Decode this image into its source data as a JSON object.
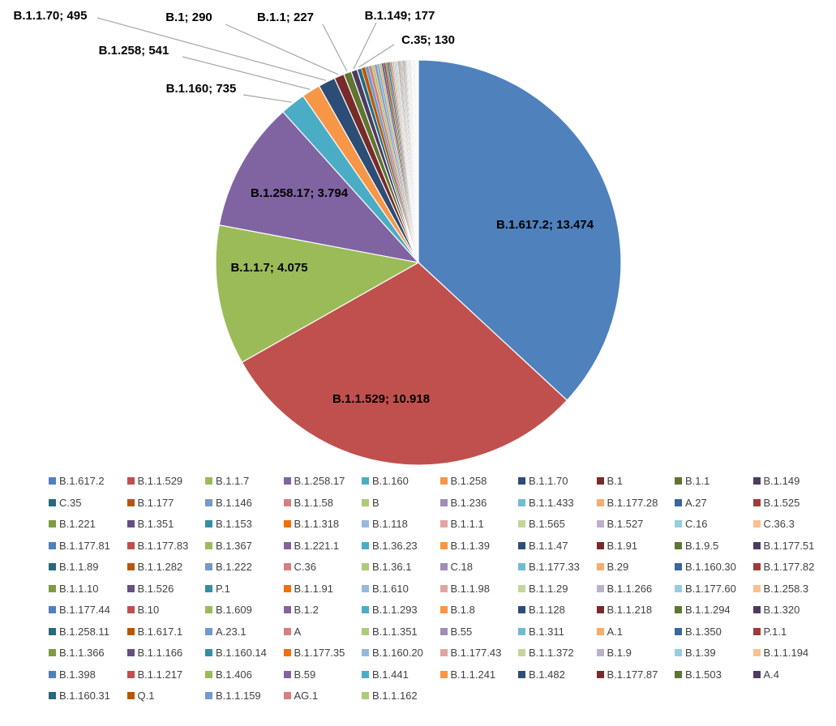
{
  "chart_data": {
    "type": "pie",
    "title": "",
    "legend_position": "bottom",
    "palette": [
      "#4F81BD",
      "#C0504D",
      "#9BBB59",
      "#8064A2",
      "#4BACC6",
      "#F79646",
      "#2C4D75",
      "#772C2A",
      "#5F7530",
      "#4D3B62",
      "#276A7C",
      "#B65708",
      "#729ACA",
      "#D4807E",
      "#AFC97A",
      "#A18CB7",
      "#6FBDD1",
      "#F9AB6B",
      "#3A679C",
      "#9F3B38",
      "#7E9C40",
      "#664F83",
      "#358EA6",
      "#F36F0A",
      "#97B8DC",
      "#E0A4A3",
      "#C3D69B",
      "#BDAFCD",
      "#95CEDD",
      "#FAC090"
    ],
    "label_precision": 0,
    "slices": [
      {
        "label": "B.1.617.2",
        "value": 13474,
        "display": "13.474"
      },
      {
        "label": "B.1.1.529",
        "value": 10918,
        "display": "10.918"
      },
      {
        "label": "B.1.1.7",
        "value": 4075,
        "display": "4.075"
      },
      {
        "label": "B.1.258.17",
        "value": 3794,
        "display": "3.794"
      },
      {
        "label": "B.1.160",
        "value": 735,
        "display": "735"
      },
      {
        "label": "B.1.258",
        "value": 541,
        "display": "541"
      },
      {
        "label": "B.1.1.70",
        "value": 495,
        "display": "495"
      },
      {
        "label": "B.1",
        "value": 290,
        "display": "290"
      },
      {
        "label": "B.1.1",
        "value": 227,
        "display": "227"
      },
      {
        "label": "B.1.149",
        "value": 177,
        "display": "177"
      },
      {
        "label": "C.35",
        "value": 130,
        "display": "130"
      },
      {
        "label": "B.1.177",
        "value": 110
      },
      {
        "label": "B.1.146",
        "value": 100
      },
      {
        "label": "B.1.1.58",
        "value": 90
      },
      {
        "label": "B",
        "value": 82
      },
      {
        "label": "B.1.236",
        "value": 75
      },
      {
        "label": "B.1.1.433",
        "value": 70
      },
      {
        "label": "B.1.177.28",
        "value": 64
      },
      {
        "label": "A.27",
        "value": 59
      },
      {
        "label": "B.1.525",
        "value": 55
      },
      {
        "label": "B.1.221",
        "value": 50
      },
      {
        "label": "B.1.351",
        "value": 46
      },
      {
        "label": "B.1.153",
        "value": 43
      },
      {
        "label": "B.1.1.318",
        "value": 40
      },
      {
        "label": "B.1.118",
        "value": 37
      },
      {
        "label": "B.1.1.1",
        "value": 34
      },
      {
        "label": "B.1.565",
        "value": 32
      },
      {
        "label": "B.1.527",
        "value": 30
      },
      {
        "label": "C.16",
        "value": 28
      },
      {
        "label": "C.36.3",
        "value": 26
      },
      {
        "label": "B.1.177.81",
        "value": 25
      },
      {
        "label": "B.1.177.83",
        "value": 24
      },
      {
        "label": "B.1.367",
        "value": 23
      },
      {
        "label": "B.1.221.1",
        "value": 22
      },
      {
        "label": "B.1.36.23",
        "value": 21
      },
      {
        "label": "B.1.1.39",
        "value": 20
      },
      {
        "label": "B.1.1.47",
        "value": 19
      },
      {
        "label": "B.1.91",
        "value": 18
      },
      {
        "label": "B.1.9.5",
        "value": 17
      },
      {
        "label": "B.1.177.51",
        "value": 16
      },
      {
        "label": "B.1.1.89",
        "value": 15
      },
      {
        "label": "B.1.1.282",
        "value": 15
      },
      {
        "label": "B.1.222",
        "value": 14
      },
      {
        "label": "C.36",
        "value": 14
      },
      {
        "label": "B.1.36.1",
        "value": 13
      },
      {
        "label": "C.18",
        "value": 13
      },
      {
        "label": "B.1.177.33",
        "value": 12
      },
      {
        "label": "B.29",
        "value": 12
      },
      {
        "label": "B.1.160.30",
        "value": 11
      },
      {
        "label": "B.1.177.82",
        "value": 11
      },
      {
        "label": "B.1.1.10",
        "value": 10
      },
      {
        "label": "B.1.526",
        "value": 10
      },
      {
        "label": "P.1",
        "value": 10
      },
      {
        "label": "B.1.1.91",
        "value": 9
      },
      {
        "label": "B.1.610",
        "value": 9
      },
      {
        "label": "B.1.1.98",
        "value": 9
      },
      {
        "label": "B.1.1.29",
        "value": 8
      },
      {
        "label": "B.1.1.266",
        "value": 8
      },
      {
        "label": "B.1.177.60",
        "value": 8
      },
      {
        "label": "B.1.258.3",
        "value": 8
      },
      {
        "label": "B.1.177.44",
        "value": 7
      },
      {
        "label": "B.10",
        "value": 7
      },
      {
        "label": "B.1.609",
        "value": 7
      },
      {
        "label": "B.1.2",
        "value": 7
      },
      {
        "label": "B.1.1.293",
        "value": 6
      },
      {
        "label": "B.1.8",
        "value": 6
      },
      {
        "label": "B.1.128",
        "value": 6
      },
      {
        "label": "B.1.1.218",
        "value": 6
      },
      {
        "label": "B.1.1.294",
        "value": 6
      },
      {
        "label": "B.1.320",
        "value": 5
      },
      {
        "label": "B.1.258.11",
        "value": 5
      },
      {
        "label": "B.1.617.1",
        "value": 5
      },
      {
        "label": "A.23.1",
        "value": 5
      },
      {
        "label": "A",
        "value": 5
      },
      {
        "label": "B.1.1.351",
        "value": 5
      },
      {
        "label": "B.55",
        "value": 4
      },
      {
        "label": "B.1.311",
        "value": 4
      },
      {
        "label": "A.1",
        "value": 4
      },
      {
        "label": "B.1.350",
        "value": 4
      },
      {
        "label": "P.1.1",
        "value": 4
      },
      {
        "label": "B.1.1.366",
        "value": 4
      },
      {
        "label": "B.1.1.166",
        "value": 3
      },
      {
        "label": "B.1.160.14",
        "value": 3
      },
      {
        "label": "B.1.177.35",
        "value": 3
      },
      {
        "label": "B.1.160.20",
        "value": 3
      },
      {
        "label": "B.1.177.43",
        "value": 3
      },
      {
        "label": "B.1.1.372",
        "value": 3
      },
      {
        "label": "B.1.9",
        "value": 3
      },
      {
        "label": "B.1.39",
        "value": 3
      },
      {
        "label": "B.1.1.194",
        "value": 2
      },
      {
        "label": "B.1.398",
        "value": 2
      },
      {
        "label": "B.1.1.217",
        "value": 2
      },
      {
        "label": "B.1.406",
        "value": 2
      },
      {
        "label": "B.59",
        "value": 2
      },
      {
        "label": "B.1.441",
        "value": 2
      },
      {
        "label": "B.1.1.241",
        "value": 2
      },
      {
        "label": "B.1.482",
        "value": 2
      },
      {
        "label": "B.1.177.87",
        "value": 2
      },
      {
        "label": "B.1.503",
        "value": 2
      },
      {
        "label": "A.4",
        "value": 1
      },
      {
        "label": "B.1.160.31",
        "value": 1
      },
      {
        "label": "Q.1",
        "value": 1
      },
      {
        "label": "B.1.1.159",
        "value": 1
      },
      {
        "label": "AG.1",
        "value": 1
      },
      {
        "label": "B.1.1.162",
        "value": 1
      }
    ]
  }
}
